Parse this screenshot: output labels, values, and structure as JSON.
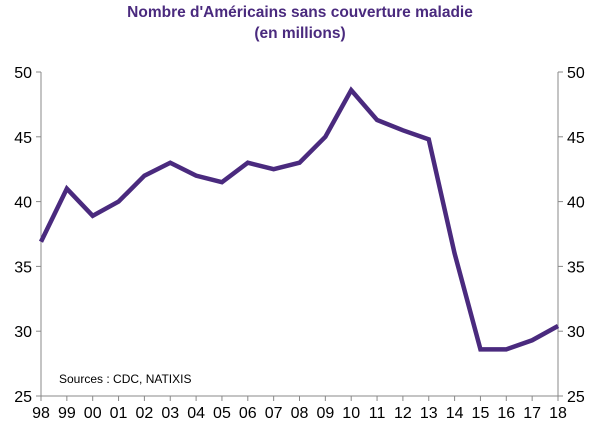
{
  "chart_data": {
    "type": "line",
    "title_line1": "Nombre d'Américains sans couverture maladie",
    "title_line2": "(en millions)",
    "source": "Sources : CDC, NATIXIS",
    "categories": [
      "98",
      "99",
      "00",
      "01",
      "02",
      "03",
      "04",
      "05",
      "06",
      "07",
      "08",
      "09",
      "10",
      "11",
      "12",
      "13",
      "14",
      "15",
      "16",
      "17",
      "18"
    ],
    "series": [
      {
        "values": [
          36.9,
          41.0,
          38.9,
          40.0,
          42.0,
          43.0,
          42.0,
          41.5,
          43.0,
          42.5,
          43.0,
          45.0,
          48.6,
          46.3,
          45.5,
          44.8,
          36.0,
          28.6,
          28.6,
          29.3,
          30.4
        ],
        "color": "#4a2a7e"
      }
    ],
    "ylim": [
      25,
      50
    ],
    "yticks": [
      25,
      30,
      35,
      40,
      45,
      50
    ],
    "title_color": "#4a2a7e",
    "grid": false,
    "legend": "none"
  }
}
